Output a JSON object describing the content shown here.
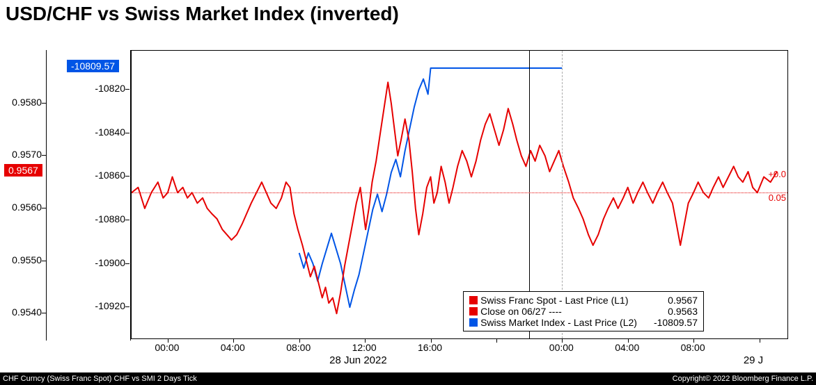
{
  "title": "USD/CHF vs Swiss Market Index (inverted)",
  "chart": {
    "type": "line",
    "background_color": "#ffffff",
    "plot_border_color": "#000000",
    "left_axis_1": {
      "label": "L1",
      "ticks": [
        0.954,
        0.955,
        0.956,
        0.957,
        0.958
      ],
      "tick_labels": [
        "0.9540",
        "0.9550",
        "0.9560",
        "0.9570",
        "0.9580"
      ],
      "ymin": 0.9535,
      "ymax": 0.959,
      "current_box": "0.9567",
      "current_value": 0.9567,
      "box_color": "#e60000"
    },
    "left_axis_2": {
      "label": "L2",
      "ticks": [
        -10920,
        -10900,
        -10880,
        -10860,
        -10840,
        -10820
      ],
      "tick_labels": [
        "-10920",
        "-10900",
        "-10880",
        "-10860",
        "-10840",
        "-10820"
      ],
      "ymin": -10935,
      "ymax": -10802,
      "current_box": "-10809.57",
      "current_value": -10809.57,
      "box_color": "#0055e6"
    },
    "x_axis": {
      "ticks_t": [
        0.055,
        0.155,
        0.255,
        0.355,
        0.455,
        0.555,
        0.655,
        0.755,
        0.855,
        0.955
      ],
      "tick_labels": [
        "00:00",
        "04:00",
        "08:00",
        "12:00",
        "16:00",
        "",
        "00:00",
        "04:00",
        "08:00",
        ""
      ],
      "date_labels": [
        {
          "t": 0.355,
          "text": "28 Jun 2022"
        },
        {
          "t": 0.985,
          "text": "29 J"
        }
      ],
      "gridlines_t": [
        0.655
      ],
      "day_sep_t": [
        0.605
      ]
    },
    "close_line": {
      "value": 0.9563,
      "color": "#e60000",
      "style": "dotted"
    },
    "right_annotations": [
      {
        "text": "+0.0",
        "y": 0.95665
      },
      {
        "text": "0.05",
        "y": 0.9562
      }
    ],
    "series_red": {
      "color": "#e60000",
      "width": 2,
      "points": [
        [
          0.0,
          0.9563
        ],
        [
          0.01,
          0.9564
        ],
        [
          0.02,
          0.956
        ],
        [
          0.03,
          0.9563
        ],
        [
          0.04,
          0.9565
        ],
        [
          0.048,
          0.9562
        ],
        [
          0.055,
          0.9563
        ],
        [
          0.062,
          0.9566
        ],
        [
          0.07,
          0.9563
        ],
        [
          0.078,
          0.9564
        ],
        [
          0.085,
          0.9562
        ],
        [
          0.092,
          0.9563
        ],
        [
          0.1,
          0.9561
        ],
        [
          0.108,
          0.9562
        ],
        [
          0.115,
          0.956
        ],
        [
          0.122,
          0.9559
        ],
        [
          0.13,
          0.9558
        ],
        [
          0.138,
          0.9556
        ],
        [
          0.145,
          0.9555
        ],
        [
          0.152,
          0.9554
        ],
        [
          0.16,
          0.9555
        ],
        [
          0.168,
          0.9557
        ],
        [
          0.175,
          0.9559
        ],
        [
          0.182,
          0.9561
        ],
        [
          0.19,
          0.9563
        ],
        [
          0.198,
          0.9565
        ],
        [
          0.205,
          0.9563
        ],
        [
          0.212,
          0.9561
        ],
        [
          0.22,
          0.956
        ],
        [
          0.228,
          0.9562
        ],
        [
          0.235,
          0.9565
        ],
        [
          0.241,
          0.9564
        ],
        [
          0.247,
          0.9559
        ],
        [
          0.253,
          0.9556
        ],
        [
          0.26,
          0.9553
        ],
        [
          0.266,
          0.955
        ],
        [
          0.272,
          0.9547
        ],
        [
          0.278,
          0.9549
        ],
        [
          0.284,
          0.9546
        ],
        [
          0.29,
          0.9543
        ],
        [
          0.295,
          0.9545
        ],
        [
          0.3,
          0.9542
        ],
        [
          0.306,
          0.9543
        ],
        [
          0.312,
          0.954
        ],
        [
          0.318,
          0.9544
        ],
        [
          0.324,
          0.9549
        ],
        [
          0.33,
          0.9553
        ],
        [
          0.336,
          0.9557
        ],
        [
          0.342,
          0.9561
        ],
        [
          0.348,
          0.9564
        ],
        [
          0.352,
          0.956
        ],
        [
          0.356,
          0.9556
        ],
        [
          0.361,
          0.956
        ],
        [
          0.366,
          0.9565
        ],
        [
          0.372,
          0.9569
        ],
        [
          0.378,
          0.9574
        ],
        [
          0.384,
          0.9579
        ],
        [
          0.39,
          0.9584
        ],
        [
          0.395,
          0.958
        ],
        [
          0.4,
          0.9575
        ],
        [
          0.405,
          0.957
        ],
        [
          0.41,
          0.9573
        ],
        [
          0.416,
          0.9577
        ],
        [
          0.422,
          0.9573
        ],
        [
          0.427,
          0.9567
        ],
        [
          0.432,
          0.956
        ],
        [
          0.437,
          0.9555
        ],
        [
          0.443,
          0.9559
        ],
        [
          0.449,
          0.9564
        ],
        [
          0.455,
          0.9566
        ],
        [
          0.46,
          0.9561
        ],
        [
          0.465,
          0.9563
        ],
        [
          0.471,
          0.9568
        ],
        [
          0.477,
          0.9565
        ],
        [
          0.483,
          0.9561
        ],
        [
          0.489,
          0.9564
        ],
        [
          0.496,
          0.9568
        ],
        [
          0.503,
          0.9571
        ],
        [
          0.51,
          0.9569
        ],
        [
          0.517,
          0.9566
        ],
        [
          0.524,
          0.9569
        ],
        [
          0.531,
          0.9573
        ],
        [
          0.538,
          0.9576
        ],
        [
          0.545,
          0.9578
        ],
        [
          0.552,
          0.9575
        ],
        [
          0.559,
          0.9572
        ],
        [
          0.566,
          0.9575
        ],
        [
          0.573,
          0.9579
        ],
        [
          0.58,
          0.9576
        ],
        [
          0.586,
          0.9573
        ],
        [
          0.593,
          0.957
        ],
        [
          0.6,
          0.9568
        ],
        [
          0.607,
          0.9571
        ],
        [
          0.614,
          0.9569
        ],
        [
          0.621,
          0.9572
        ],
        [
          0.629,
          0.957
        ],
        [
          0.636,
          0.9567
        ],
        [
          0.643,
          0.9569
        ],
        [
          0.65,
          0.9571
        ],
        [
          0.657,
          0.9568
        ],
        [
          0.665,
          0.9565
        ],
        [
          0.672,
          0.9562
        ],
        [
          0.68,
          0.956
        ],
        [
          0.687,
          0.9558
        ],
        [
          0.695,
          0.9555
        ],
        [
          0.702,
          0.9553
        ],
        [
          0.71,
          0.9555
        ],
        [
          0.718,
          0.9558
        ],
        [
          0.725,
          0.956
        ],
        [
          0.733,
          0.9562
        ],
        [
          0.74,
          0.956
        ],
        [
          0.748,
          0.9562
        ],
        [
          0.755,
          0.9564
        ],
        [
          0.763,
          0.9561
        ],
        [
          0.77,
          0.9563
        ],
        [
          0.778,
          0.9565
        ],
        [
          0.785,
          0.9563
        ],
        [
          0.793,
          0.9561
        ],
        [
          0.8,
          0.9563
        ],
        [
          0.808,
          0.9565
        ],
        [
          0.815,
          0.9563
        ],
        [
          0.823,
          0.9561
        ],
        [
          0.829,
          0.9557
        ],
        [
          0.835,
          0.9553
        ],
        [
          0.841,
          0.9557
        ],
        [
          0.847,
          0.9561
        ],
        [
          0.855,
          0.9563
        ],
        [
          0.862,
          0.9565
        ],
        [
          0.87,
          0.9563
        ],
        [
          0.878,
          0.9562
        ],
        [
          0.885,
          0.9564
        ],
        [
          0.893,
          0.9566
        ],
        [
          0.9,
          0.9564
        ],
        [
          0.908,
          0.9566
        ],
        [
          0.916,
          0.9568
        ],
        [
          0.923,
          0.9566
        ],
        [
          0.93,
          0.9565
        ],
        [
          0.938,
          0.9567
        ],
        [
          0.945,
          0.9564
        ],
        [
          0.952,
          0.9563
        ],
        [
          0.962,
          0.9566
        ],
        [
          0.972,
          0.9565
        ],
        [
          0.982,
          0.9567
        ]
      ]
    },
    "series_blue": {
      "color": "#0055e6",
      "width": 2,
      "start_t": 0.255,
      "end_t": 0.655,
      "points": [
        [
          0.255,
          -10895
        ],
        [
          0.262,
          -10902
        ],
        [
          0.269,
          -10895
        ],
        [
          0.276,
          -10900
        ],
        [
          0.283,
          -10908
        ],
        [
          0.29,
          -10900
        ],
        [
          0.297,
          -10893
        ],
        [
          0.304,
          -10886
        ],
        [
          0.311,
          -10893
        ],
        [
          0.318,
          -10900
        ],
        [
          0.325,
          -10910
        ],
        [
          0.332,
          -10920
        ],
        [
          0.339,
          -10912
        ],
        [
          0.346,
          -10905
        ],
        [
          0.353,
          -10895
        ],
        [
          0.36,
          -10885
        ],
        [
          0.367,
          -10875
        ],
        [
          0.374,
          -10868
        ],
        [
          0.381,
          -10876
        ],
        [
          0.388,
          -10868
        ],
        [
          0.395,
          -10858
        ],
        [
          0.402,
          -10852
        ],
        [
          0.409,
          -10860
        ],
        [
          0.416,
          -10848
        ],
        [
          0.423,
          -10838
        ],
        [
          0.43,
          -10828
        ],
        [
          0.437,
          -10820
        ],
        [
          0.444,
          -10815
        ],
        [
          0.451,
          -10822
        ],
        [
          0.455,
          -10810
        ],
        [
          0.462,
          -10810
        ],
        [
          0.655,
          -10810
        ]
      ]
    }
  },
  "legend": {
    "rows": [
      {
        "swatch": "#e60000",
        "shape": "square",
        "label": "Swiss Franc Spot - Last Price (L1)",
        "value": "0.9567"
      },
      {
        "swatch": "#e60000",
        "shape": "square",
        "label": "Close on 06/27  ----",
        "value": "0.9563"
      },
      {
        "swatch": "#0055e6",
        "shape": "square",
        "label": "Swiss Market Index - Last Price (L2)",
        "value": "-10809.57"
      }
    ]
  },
  "footer": {
    "left": "CHF Curncy (Swiss Franc Spot) CHF vs SMI 2 Days  Tick",
    "right": "Copyright© 2022 Bloomberg Finance L.P."
  }
}
